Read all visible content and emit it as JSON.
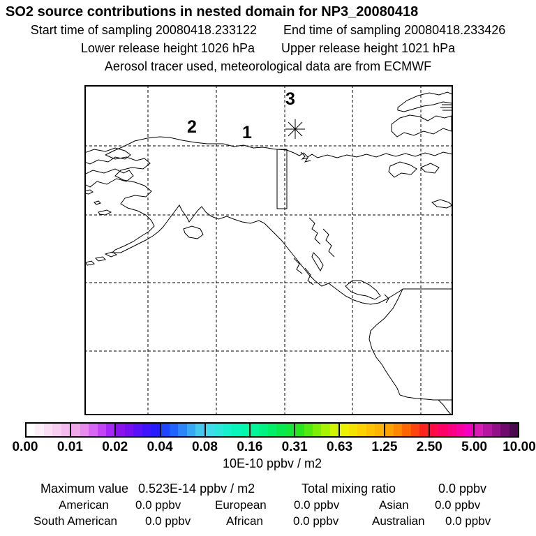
{
  "header": {
    "title": "SO2 source contributions in nested domain for NP3_20080418",
    "start_time": "Start time of sampling 20080418.233122",
    "end_time": "End time of sampling 20080418.233426",
    "lower_release": "Lower release height 1026 hPa",
    "upper_release": "Upper release height 1021 hPa",
    "tracer_info": "Aerosol tracer used, meteorological data are from ECMWF"
  },
  "map": {
    "release_point_labels": [
      "1",
      "2",
      "3"
    ],
    "marker": "asterisk-sampling-location"
  },
  "colorbar": {
    "tick_labels": [
      "0.00",
      "0.01",
      "0.02",
      "0.04",
      "0.08",
      "0.16",
      "0.31",
      "0.63",
      "1.25",
      "2.50",
      "5.00",
      "10.00"
    ],
    "units_label": "10E-10 ppbv / m2",
    "segments": [
      {
        "steps": [
          "#ffffff",
          "#fdeffa",
          "#fbdef6",
          "#f8cdf2",
          "#f4bcee"
        ]
      },
      {
        "steps": [
          "#f0a8ea",
          "#e88aee",
          "#d866f2",
          "#c244f6",
          "#a826f8"
        ]
      },
      {
        "steps": [
          "#8c12ec",
          "#7410f2",
          "#5a10f8",
          "#4014fc",
          "#281cff"
        ]
      },
      {
        "steps": [
          "#1e46ff",
          "#2064ff",
          "#2c86fa",
          "#38a8f4",
          "#44c8ee"
        ]
      },
      {
        "steps": [
          "#40dcec",
          "#2ce8dc",
          "#18f0cc",
          "#08f6bc",
          "#00faac"
        ]
      },
      {
        "steps": [
          "#00f698",
          "#00f280",
          "#00ee68",
          "#06ea50",
          "#12e638"
        ]
      },
      {
        "steps": [
          "#28e61e",
          "#50ea10",
          "#7cee08",
          "#a8f204",
          "#d0f400"
        ]
      },
      {
        "steps": [
          "#eaf200",
          "#f4e200",
          "#fcd200",
          "#ffc200",
          "#ffb200"
        ]
      },
      {
        "steps": [
          "#ffa200",
          "#ff8800",
          "#ff6600",
          "#ff4410",
          "#ff2420"
        ]
      },
      {
        "steps": [
          "#ff0c48",
          "#ff0066",
          "#fc0084",
          "#f800a2",
          "#f400c0"
        ]
      },
      {
        "steps": [
          "#d81cb4",
          "#b516a0",
          "#921088",
          "#700a6e",
          "#4e0850"
        ]
      }
    ]
  },
  "stats": {
    "maximum_value_label": "Maximum value",
    "maximum_value": "0.523E-14 ppbv / m2",
    "total_mixing_ratio_label": "Total mixing ratio",
    "total_mixing_ratio": "0.0 ppbv",
    "regions": [
      {
        "name": "American",
        "value": "0.0 ppbv"
      },
      {
        "name": "European",
        "value": "0.0 ppbv"
      },
      {
        "name": "Asian",
        "value": "0.0 ppbv"
      },
      {
        "name": "South American",
        "value": "0.0 ppbv"
      },
      {
        "name": "African",
        "value": "0.0 ppbv"
      },
      {
        "name": "Australian",
        "value": "0.0 ppbv"
      }
    ]
  },
  "chart_data": {
    "type": "heatmap",
    "title": "SO2 source contributions in nested domain for NP3_20080418",
    "region_shown": "North Pacific / Alaska / western North America nested domain",
    "colorbar_levels": [
      0.0,
      0.01,
      0.02,
      0.04,
      0.08,
      0.16,
      0.31,
      0.63,
      1.25,
      2.5,
      5.0,
      10.0
    ],
    "colorbar_units": "10E-10 ppbv / m2",
    "field_visible": "none (all grid values below lowest contour level)",
    "maximum_value": "0.523E-14 ppbv / m2",
    "total_mixing_ratio": "0.0 ppbv",
    "regional_contributions_ppbv": {
      "American": 0.0,
      "European": 0.0,
      "Asian": 0.0,
      "South American": 0.0,
      "African": 0.0,
      "Australian": 0.0
    },
    "release_points": [
      "1",
      "2",
      "3"
    ],
    "sampling_marker": "asterisk near release point 3",
    "grid": "dashed lat/lon graticule, 5 meridians and 4 parallels inside frame"
  }
}
